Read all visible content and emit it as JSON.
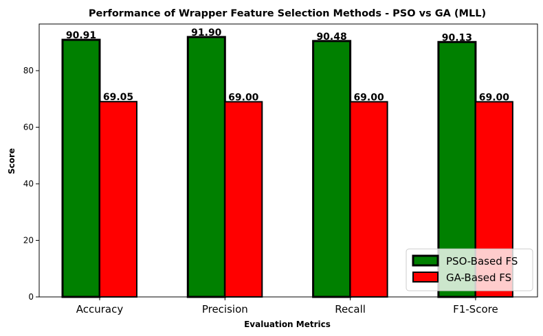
{
  "chart_data": {
    "type": "bar",
    "title": "Performance of Wrapper Feature Selection Methods - PSO vs GA (MLL)",
    "xlabel": "Evaluation Metrics",
    "ylabel": "Score",
    "categories": [
      "Accuracy",
      "Precision",
      "Recall",
      "F1-Score"
    ],
    "series": [
      {
        "name": "PSO-Based FS",
        "values": [
          90.91,
          91.9,
          90.48,
          90.13
        ],
        "labels": [
          "90.91",
          "91.90",
          "90.48",
          "90.13"
        ],
        "color": "#008000"
      },
      {
        "name": "GA-Based FS",
        "values": [
          69.05,
          69.0,
          69.0,
          69.0
        ],
        "labels": [
          "69.05",
          "69.00",
          "69.00",
          "69.00"
        ],
        "color": "#ff0000"
      }
    ],
    "ylim": [
      0,
      96.5
    ],
    "yticks": [
      "0",
      "20",
      "40",
      "60",
      "80"
    ],
    "ytick_values": [
      0,
      20,
      40,
      60,
      80
    ],
    "grid": false,
    "legend_position": "lower-right"
  }
}
